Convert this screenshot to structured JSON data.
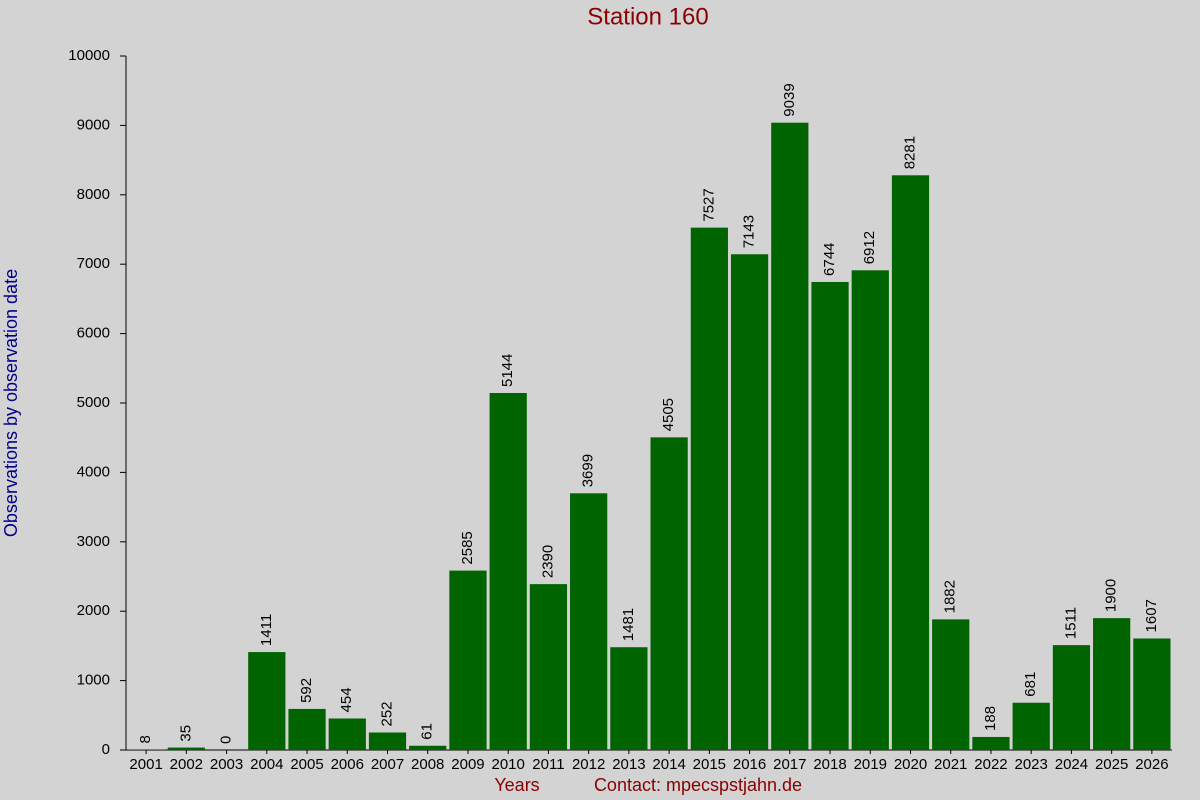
{
  "chart_data": {
    "type": "bar",
    "title": "Station 160",
    "y_label": "Observations by observation date",
    "x_label": "Years",
    "note": "Contact: mpecspstjahn.de",
    "categories": [
      "2001",
      "2002",
      "2003",
      "2004",
      "2005",
      "2006",
      "2007",
      "2008",
      "2009",
      "2010",
      "2011",
      "2012",
      "2013",
      "2014",
      "2015",
      "2016",
      "2017",
      "2018",
      "2019",
      "2020",
      "2021",
      "2022",
      "2023",
      "2024",
      "2025",
      "2026"
    ],
    "values": [
      8,
      35,
      0,
      1411,
      592,
      454,
      252,
      61,
      2585,
      5144,
      2390,
      3699,
      1481,
      4505,
      7527,
      7143,
      9039,
      6744,
      6912,
      8281,
      1882,
      188,
      681,
      1511,
      1900,
      1607
    ],
    "color": "#006400",
    "ylim": [
      0,
      10000
    ],
    "yticks": [
      0,
      1000,
      2000,
      3000,
      4000,
      5000,
      6000,
      7000,
      8000,
      9000,
      10000
    ]
  }
}
